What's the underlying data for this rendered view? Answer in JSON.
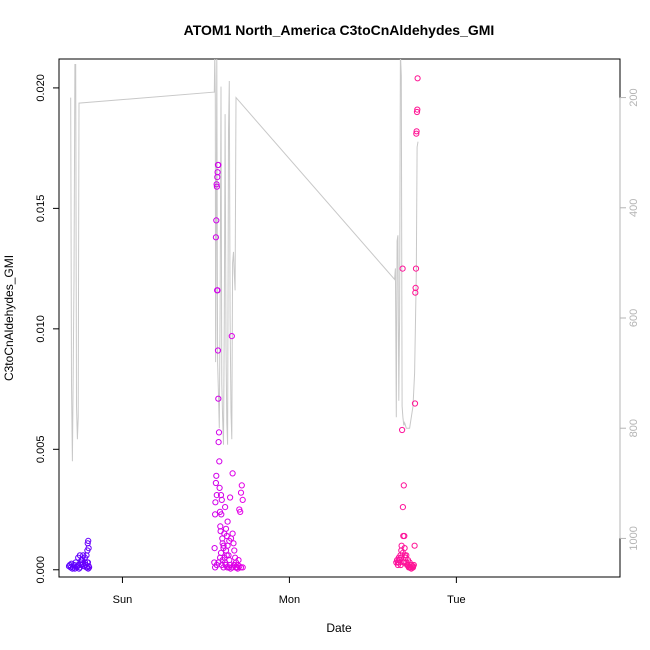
{
  "chart_data": {
    "type": "scatter",
    "title": "ATOM1 North_America C3toCnAldehydes_GMI",
    "xlabel": "Date",
    "ylabel": "C3toCnAldehydes_GMI",
    "x_ticks": [
      "Sun",
      "Mon",
      "Tue"
    ],
    "x_tick_values": [
      1,
      2,
      3
    ],
    "xlim": [
      0.62,
      3.98
    ],
    "ylim": [
      -0.0003,
      0.0212
    ],
    "y_ticks": [
      "0.000",
      "0.005",
      "0.010",
      "0.015",
      "0.020"
    ],
    "y_tick_values": [
      0.0,
      0.005,
      0.01,
      0.015,
      0.02
    ],
    "right_ylim": [
      1070,
      130
    ],
    "right_ticks": [
      "200",
      "400",
      "600",
      "800",
      "1000"
    ],
    "right_tick_values": [
      200,
      400,
      600,
      800,
      1000
    ],
    "grid": false,
    "colors": {
      "pressure_line": "#c8c8c8",
      "series_start": "#5a00ff",
      "series_mid": "#e600e6",
      "series_end": "#ff1493",
      "right_axis": "#b4b4b4",
      "axis": "#000000"
    },
    "series": [
      {
        "points": [
          [
            0.68,
            0.00015
          ],
          [
            0.685,
            0.0002
          ],
          [
            0.69,
            0.0001
          ],
          [
            0.695,
            0.00025
          ],
          [
            0.7,
            5e-05
          ],
          [
            0.705,
            0.0001
          ],
          [
            0.71,
            0.0002
          ],
          [
            0.715,
            5e-05
          ],
          [
            0.72,
            0.0003
          ],
          [
            0.725,
            0.0001
          ],
          [
            0.73,
            0.00015
          ],
          [
            0.735,
            0.0002
          ],
          [
            0.74,
            5e-05
          ],
          [
            0.745,
            0.0001
          ],
          [
            0.75,
            0.0003
          ],
          [
            0.755,
            0.0002
          ],
          [
            0.76,
            0.0004
          ],
          [
            0.765,
            0.00025
          ],
          [
            0.77,
            0.00015
          ],
          [
            0.775,
            0.0005
          ],
          [
            0.78,
            0.0002
          ],
          [
            0.785,
            0.0001
          ],
          [
            0.79,
            0.0003
          ],
          [
            0.795,
            5e-05
          ],
          [
            0.8,
            0.0001
          ],
          [
            0.735,
            0.0005
          ],
          [
            0.745,
            0.0006
          ],
          [
            0.755,
            0.0004
          ],
          [
            0.765,
            0.0006
          ],
          [
            0.775,
            0.0003
          ],
          [
            0.785,
            0.0006
          ],
          [
            0.79,
            0.0008
          ],
          [
            0.792,
            0.0011
          ],
          [
            0.795,
            0.0012
          ],
          [
            0.797,
            0.0009
          ],
          [
            0.793,
            0.0003
          ],
          [
            0.788,
            0.0001
          ],
          [
            0.798,
            0.00015
          ]
        ]
      },
      {
        "points": [
          [
            1.55,
            0.0003
          ],
          [
            1.552,
            0.0009
          ],
          [
            1.555,
            0.0023
          ],
          [
            1.557,
            0.0028
          ],
          [
            1.56,
            0.0036
          ],
          [
            1.562,
            0.0039
          ],
          [
            1.565,
            0.0031
          ],
          [
            1.567,
            0.0116
          ],
          [
            1.57,
            0.0116
          ],
          [
            1.572,
            0.0091
          ],
          [
            1.574,
            0.0071
          ],
          [
            1.56,
            0.0138
          ],
          [
            1.562,
            0.0145
          ],
          [
            1.564,
            0.016
          ],
          [
            1.566,
            0.0159
          ],
          [
            1.568,
            0.0163
          ],
          [
            1.57,
            0.0165
          ],
          [
            1.572,
            0.0168
          ],
          [
            1.574,
            0.0168
          ],
          [
            1.576,
            0.0053
          ],
          [
            1.578,
            0.0057
          ],
          [
            1.58,
            0.0045
          ],
          [
            1.582,
            0.0034
          ],
          [
            1.584,
            0.0024
          ],
          [
            1.586,
            0.0018
          ],
          [
            1.588,
            0.0016
          ],
          [
            1.59,
            0.0031
          ],
          [
            1.592,
            0.0023
          ],
          [
            1.595,
            0.0029
          ],
          [
            1.598,
            0.0013
          ],
          [
            1.6,
            0.0011
          ],
          [
            1.605,
            0.0009
          ],
          [
            1.61,
            0.0015
          ],
          [
            1.615,
            0.0026
          ],
          [
            1.62,
            0.0017
          ],
          [
            1.625,
            0.0014
          ],
          [
            1.63,
            0.001
          ],
          [
            1.635,
            0.0006
          ],
          [
            1.64,
            0.0004
          ],
          [
            1.645,
            0.0002
          ],
          [
            1.65,
            0.0013
          ],
          [
            1.655,
            0.0097
          ],
          [
            1.66,
            0.0015
          ],
          [
            1.665,
            0.0011
          ],
          [
            1.67,
            0.0008
          ],
          [
            1.675,
            0.0005
          ],
          [
            1.68,
            0.0003
          ],
          [
            1.685,
            0.0001
          ],
          [
            1.69,
            0.0002
          ],
          [
            1.695,
            0.0004
          ],
          [
            1.7,
            0.0025
          ],
          [
            1.705,
            0.0024
          ],
          [
            1.71,
            0.0032
          ],
          [
            1.715,
            0.0035
          ],
          [
            1.72,
            0.0029
          ],
          [
            1.66,
            0.004
          ],
          [
            1.645,
            0.003
          ],
          [
            1.63,
            0.002
          ],
          [
            1.625,
            0.0006
          ],
          [
            1.615,
            0.0003
          ],
          [
            1.605,
            0.0001
          ],
          [
            1.595,
            0.0002
          ],
          [
            1.585,
            0.0005
          ],
          [
            1.575,
            0.0003
          ],
          [
            1.565,
            0.0002
          ],
          [
            1.555,
            0.0001
          ],
          [
            1.59,
            0.0007
          ],
          [
            1.6,
            0.0004
          ],
          [
            1.62,
            0.0008
          ],
          [
            1.64,
            0.0012
          ],
          [
            1.67,
            0.0002
          ],
          [
            1.69,
            5e-05
          ],
          [
            1.7,
            0.00015
          ],
          [
            1.71,
            0.0001
          ],
          [
            1.72,
            0.0001
          ],
          [
            1.606,
            0.001
          ],
          [
            1.612,
            0.0005
          ],
          [
            1.618,
            0.0002
          ],
          [
            1.628,
            0.0001
          ],
          [
            1.638,
            0.0001
          ],
          [
            1.648,
            5e-05
          ],
          [
            1.658,
            0.0001
          ],
          [
            1.668,
            0.0002
          ],
          [
            1.678,
            0.0001
          ],
          [
            1.688,
            0.0001
          ]
        ]
      },
      {
        "points": [
          [
            2.64,
            0.0003
          ],
          [
            2.645,
            0.0004
          ],
          [
            2.65,
            0.0003
          ],
          [
            2.655,
            0.0005
          ],
          [
            2.66,
            0.0004
          ],
          [
            2.665,
            0.0006
          ],
          [
            2.67,
            0.0008
          ],
          [
            2.672,
            0.001
          ],
          [
            2.675,
            0.0058
          ],
          [
            2.678,
            0.0125
          ],
          [
            2.68,
            0.0026
          ],
          [
            2.682,
            0.0014
          ],
          [
            2.685,
            0.0035
          ],
          [
            2.688,
            0.0014
          ],
          [
            2.69,
            0.0009
          ],
          [
            2.692,
            0.0006
          ],
          [
            2.695,
            0.0005
          ],
          [
            2.7,
            0.0003
          ],
          [
            2.705,
            0.0002
          ],
          [
            2.71,
            0.0002
          ],
          [
            2.715,
            0.0001
          ],
          [
            2.72,
            0.0001
          ],
          [
            2.725,
            0.0001
          ],
          [
            2.73,
            5e-05
          ],
          [
            2.735,
            0.0001
          ],
          [
            2.74,
            0.00015
          ],
          [
            2.745,
            0.0002
          ],
          [
            2.75,
            0.001
          ],
          [
            2.752,
            0.0069
          ],
          [
            2.754,
            0.0115
          ],
          [
            2.756,
            0.0117
          ],
          [
            2.758,
            0.0125
          ],
          [
            2.76,
            0.0181
          ],
          [
            2.762,
            0.0182
          ],
          [
            2.764,
            0.019
          ],
          [
            2.766,
            0.0191
          ],
          [
            2.768,
            0.0204
          ],
          [
            2.66,
            0.0004
          ],
          [
            2.67,
            0.0005
          ],
          [
            2.68,
            0.0007
          ],
          [
            2.69,
            0.0003
          ],
          [
            2.7,
            0.0006
          ],
          [
            2.71,
            0.0004
          ],
          [
            2.72,
            0.0003
          ],
          [
            2.73,
            0.0002
          ],
          [
            2.74,
            0.0001
          ],
          [
            2.65,
            0.0002
          ],
          [
            2.655,
            0.0003
          ],
          [
            2.667,
            0.0002
          ],
          [
            2.683,
            0.0003
          ]
        ]
      }
    ],
    "pressure_line": [
      [
        0.69,
        200
      ],
      [
        0.695,
        720
      ],
      [
        0.7,
        860
      ],
      [
        0.705,
        700
      ],
      [
        0.71,
        530
      ],
      [
        0.715,
        140
      ],
      [
        0.72,
        140
      ],
      [
        0.725,
        760
      ],
      [
        0.73,
        820
      ],
      [
        0.735,
        780
      ],
      [
        0.74,
        210
      ],
      [
        1.55,
        190
      ],
      [
        1.553,
        120
      ],
      [
        1.556,
        200
      ],
      [
        1.558,
        680
      ],
      [
        1.56,
        640
      ],
      [
        1.565,
        120
      ],
      [
        1.57,
        680
      ],
      [
        1.575,
        740
      ],
      [
        1.58,
        800
      ],
      [
        1.585,
        580
      ],
      [
        1.59,
        180
      ],
      [
        1.595,
        720
      ],
      [
        1.6,
        780
      ],
      [
        1.605,
        830
      ],
      [
        1.61,
        600
      ],
      [
        1.615,
        230
      ],
      [
        1.62,
        650
      ],
      [
        1.625,
        790
      ],
      [
        1.63,
        830
      ],
      [
        1.635,
        260
      ],
      [
        1.64,
        170
      ],
      [
        1.645,
        600
      ],
      [
        1.65,
        770
      ],
      [
        1.655,
        820
      ],
      [
        1.66,
        500
      ],
      [
        1.665,
        480
      ],
      [
        1.67,
        520
      ],
      [
        1.675,
        550
      ],
      [
        1.68,
        200
      ],
      [
        2.63,
        530
      ],
      [
        2.635,
        510
      ],
      [
        2.64,
        780
      ],
      [
        2.645,
        460
      ],
      [
        2.65,
        450
      ],
      [
        2.655,
        750
      ],
      [
        2.66,
        600
      ],
      [
        2.665,
        120
      ],
      [
        2.67,
        160
      ],
      [
        2.675,
        760
      ],
      [
        2.68,
        780
      ],
      [
        2.685,
        795
      ],
      [
        2.69,
        790
      ],
      [
        2.7,
        800
      ],
      [
        2.72,
        800
      ],
      [
        2.74,
        760
      ],
      [
        2.75,
        700
      ],
      [
        2.76,
        520
      ],
      [
        2.765,
        290
      ],
      [
        2.77,
        280
      ]
    ]
  }
}
